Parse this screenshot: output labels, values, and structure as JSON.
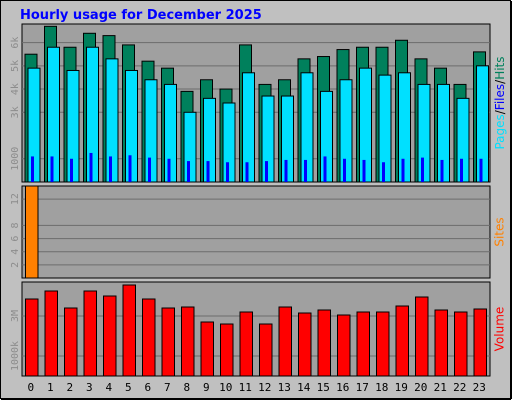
{
  "colors": {
    "title": "#0000ff",
    "background": "#c0c0c0",
    "plot_background": "#a0a0a0",
    "gridline": "#6c6c6c",
    "hits": "#00805c",
    "files": "#00e0ff",
    "pages": "#0000ff",
    "sites": "#ff8000",
    "volume": "#ff0000",
    "tick_text": "#8c8c8c"
  },
  "chart_data": [
    {
      "type": "bar",
      "panel": "usage",
      "title": "Hourly usage for December 2025",
      "categories": [
        "0",
        "1",
        "2",
        "3",
        "4",
        "5",
        "6",
        "7",
        "8",
        "9",
        "10",
        "11",
        "12",
        "13",
        "14",
        "15",
        "16",
        "17",
        "18",
        "19",
        "20",
        "21",
        "22",
        "23"
      ],
      "series": [
        {
          "name": "Hits",
          "values": [
            5500,
            6700,
            5800,
            6400,
            6300,
            5900,
            5200,
            4900,
            3900,
            4400,
            4000,
            5900,
            4200,
            4400,
            5300,
            5400,
            5700,
            5800,
            5800,
            6100,
            5300,
            4900,
            4200,
            5600
          ]
        },
        {
          "name": "Files",
          "values": [
            4900,
            5800,
            4800,
            5800,
            5300,
            4800,
            4400,
            4200,
            3000,
            3600,
            3400,
            4700,
            3700,
            3700,
            4700,
            3900,
            4400,
            4900,
            4600,
            4700,
            4200,
            4200,
            3600,
            5000
          ]
        },
        {
          "name": "Pages",
          "values": [
            1100,
            1100,
            1000,
            1250,
            1100,
            1150,
            1050,
            1000,
            900,
            900,
            850,
            850,
            900,
            950,
            950,
            1100,
            1000,
            950,
            850,
            1000,
            1050,
            950,
            1000,
            1000
          ]
        }
      ],
      "yticks": [
        "1000",
        "3k",
        "4k",
        "5k",
        "6k"
      ],
      "ylim": [
        0,
        6800
      ],
      "side_label_parts": [
        "Pages",
        "/",
        "Files",
        "/",
        "Hits"
      ],
      "grid": true
    },
    {
      "type": "bar",
      "panel": "sites",
      "categories": [
        "0",
        "1",
        "2",
        "3",
        "4",
        "5",
        "6",
        "7",
        "8",
        "9",
        "10",
        "11",
        "12",
        "13",
        "14",
        "15",
        "16",
        "17",
        "18",
        "19",
        "20",
        "21",
        "22",
        "23"
      ],
      "series": [
        {
          "name": "Sites",
          "values": [
            14,
            0,
            0,
            0,
            0,
            0,
            0,
            0,
            0,
            0,
            0,
            0,
            0,
            0,
            0,
            0,
            0,
            0,
            0,
            0,
            0,
            0,
            0,
            0
          ]
        }
      ],
      "yticks": [
        "2",
        "4",
        "6",
        "8",
        "12"
      ],
      "ylim": [
        0,
        14
      ],
      "side_label": "Sites",
      "grid": true
    },
    {
      "type": "bar",
      "panel": "volume",
      "categories": [
        "0",
        "1",
        "2",
        "3",
        "4",
        "5",
        "6",
        "7",
        "8",
        "9",
        "10",
        "11",
        "12",
        "13",
        "14",
        "15",
        "16",
        "17",
        "18",
        "19",
        "20",
        "21",
        "22",
        "23"
      ],
      "series": [
        {
          "name": "Volume",
          "values": [
            3850000,
            4250000,
            3400000,
            4250000,
            4000000,
            4550000,
            3850000,
            3400000,
            3450000,
            2700000,
            2600000,
            3200000,
            2600000,
            3450000,
            3150000,
            3300000,
            3050000,
            3200000,
            3200000,
            3500000,
            3950000,
            3300000,
            3200000,
            3350000
          ]
        }
      ],
      "yticks": [
        "1000k",
        "3M"
      ],
      "ylim": [
        0,
        4700000
      ],
      "side_label": "Volume",
      "grid": true
    }
  ]
}
